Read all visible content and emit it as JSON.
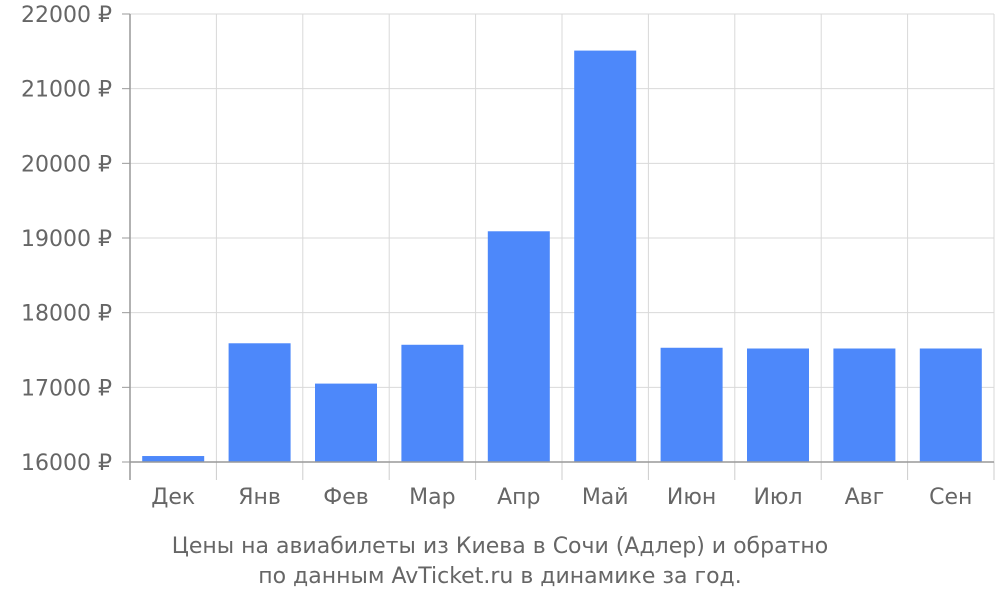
{
  "chart_data": {
    "type": "bar",
    "categories": [
      "Дек",
      "Янв",
      "Фев",
      "Мар",
      "Апр",
      "Май",
      "Июн",
      "Июл",
      "Авг",
      "Сен"
    ],
    "values": [
      16080,
      17590,
      17050,
      17570,
      19090,
      21510,
      17530,
      17520,
      17520,
      17520
    ],
    "ylim": [
      16000,
      22000
    ],
    "y_ticks": [
      16000,
      17000,
      18000,
      19000,
      20000,
      21000,
      22000
    ],
    "y_tick_suffix": " ₽",
    "grid": true,
    "bar_color": "#4d88fa"
  },
  "caption": {
    "line1": "Цены на авиабилеты из Киева в Сочи (Адлер) и обратно",
    "line2": "по данным AvTicket.ru в динамике за год."
  }
}
